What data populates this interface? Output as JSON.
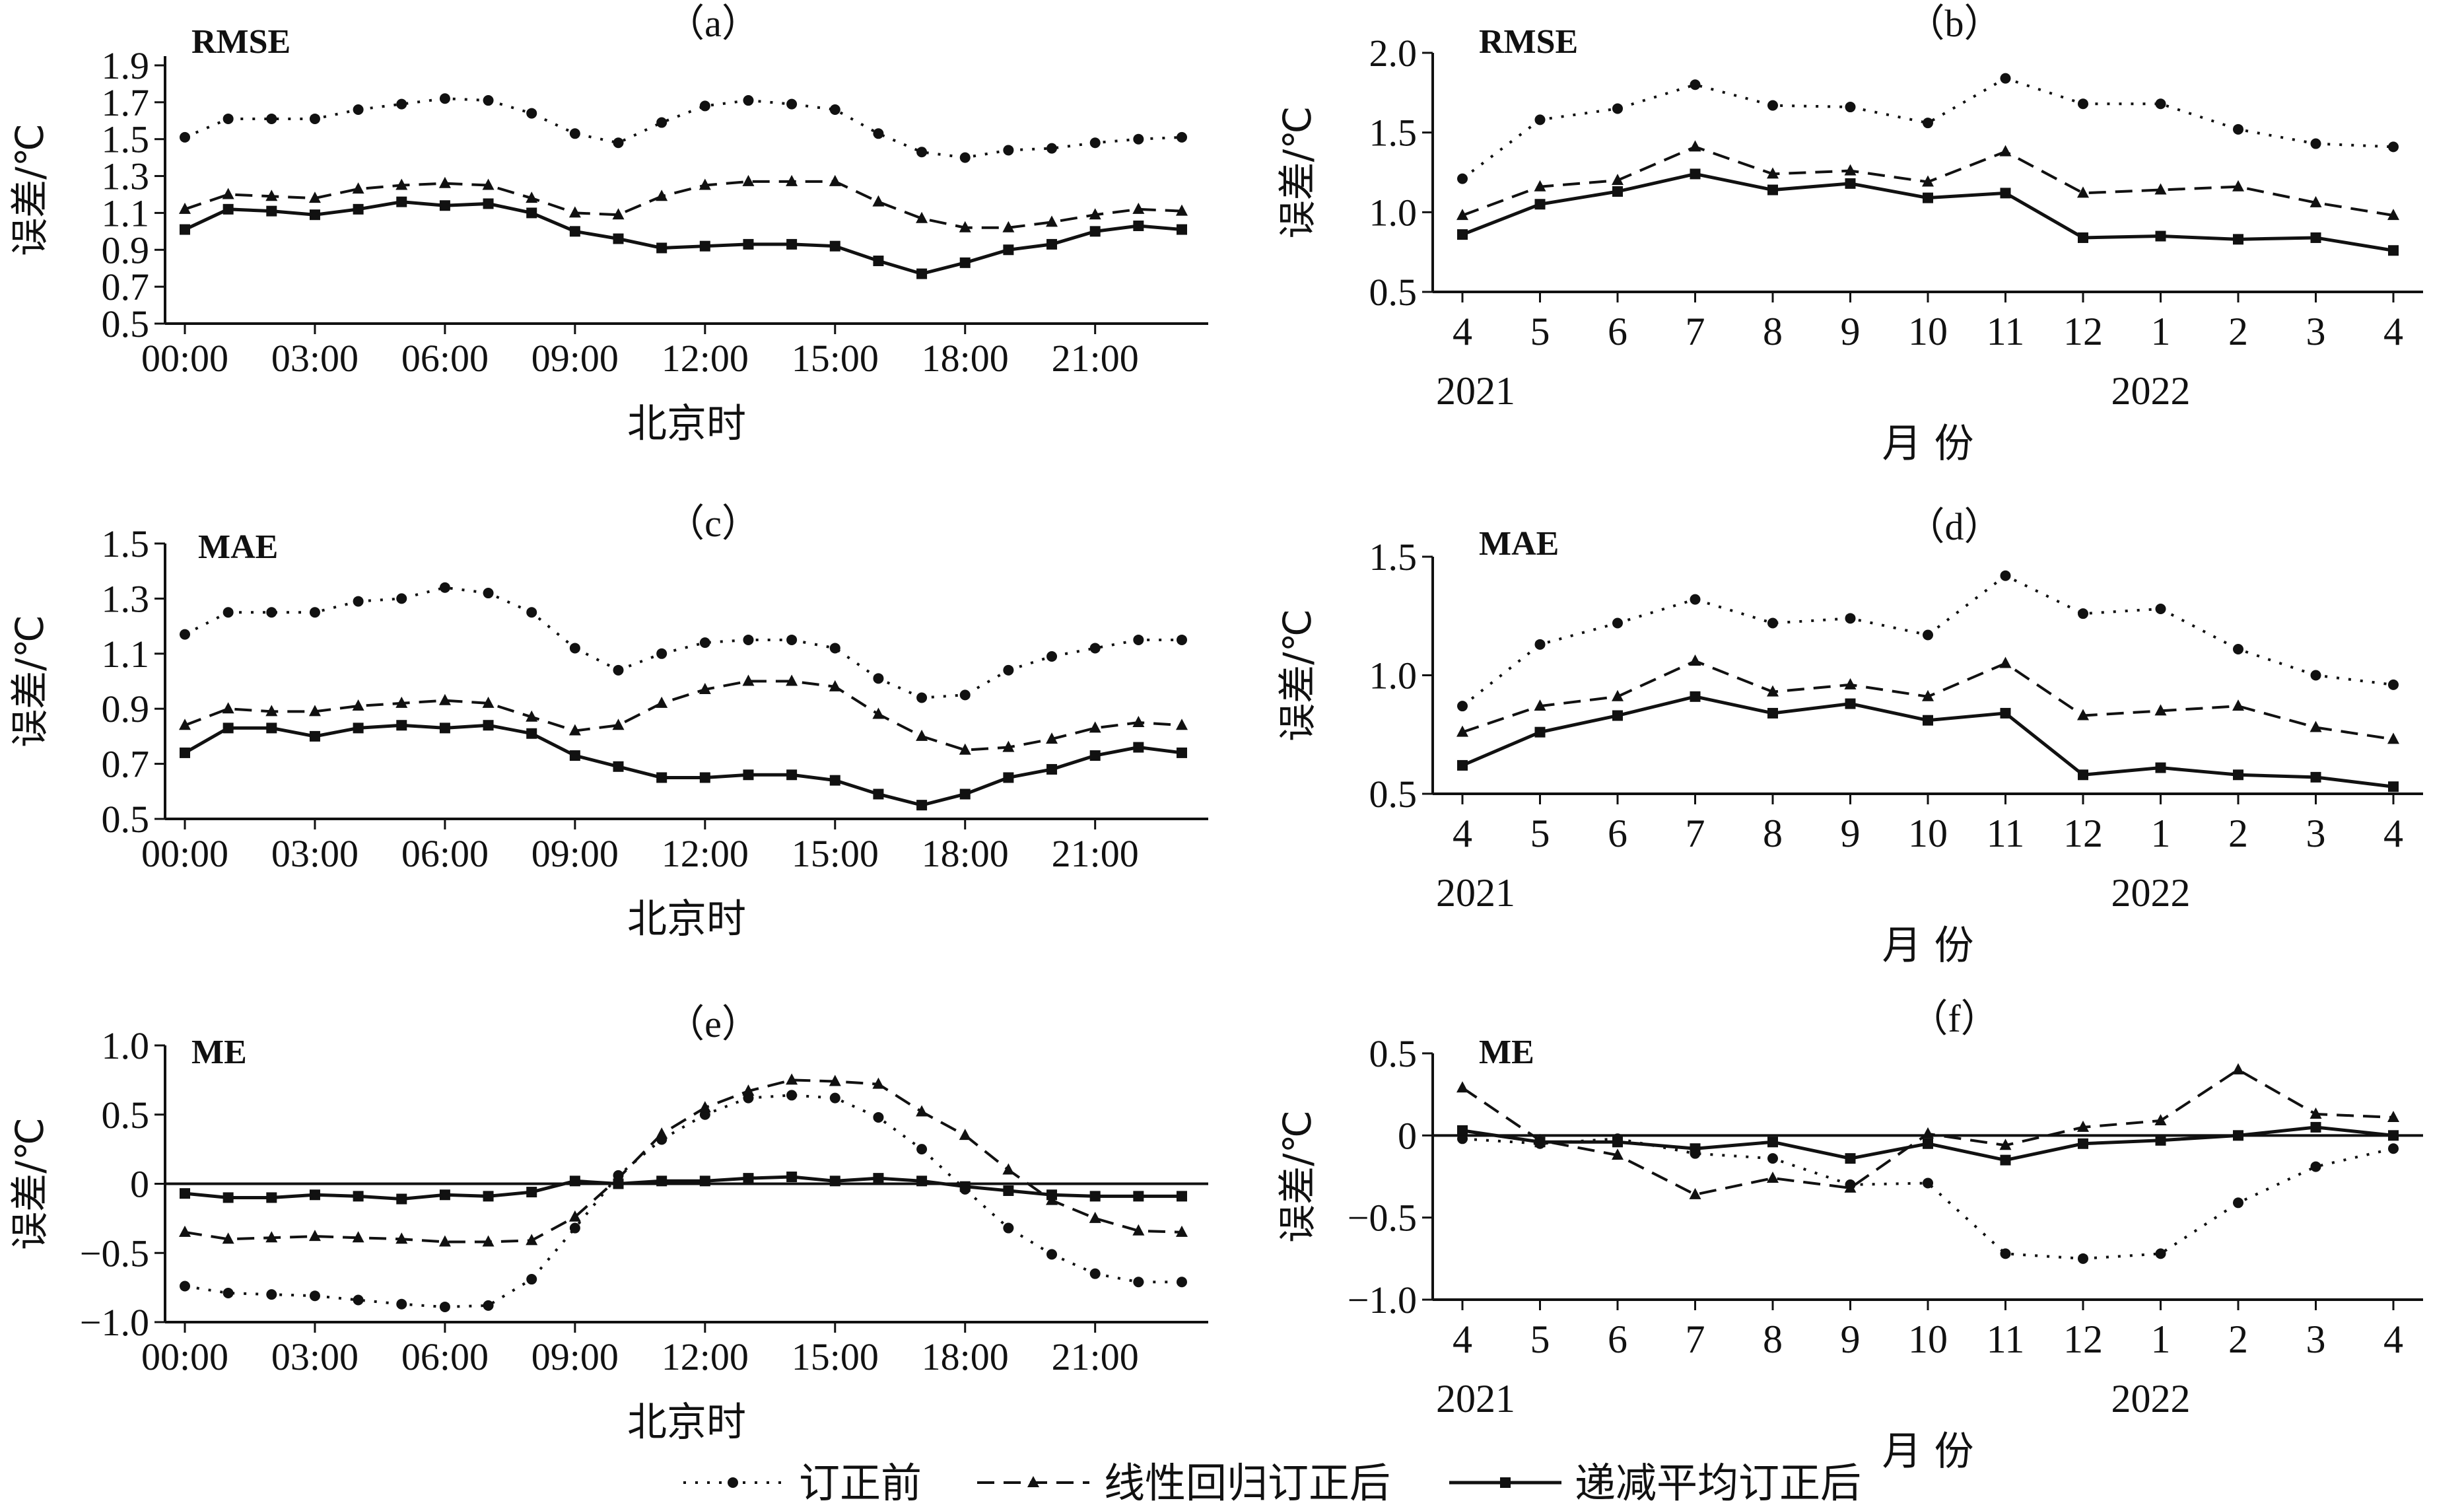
{
  "legend": {
    "before": "订正前",
    "linear": "线性回归订正后",
    "decay": "递减平均订正后"
  },
  "colors": {
    "ink": "#111111",
    "background": "#ffffff"
  },
  "chart_data": [
    {
      "id": "a",
      "panel_label": "（a）",
      "metric_label": "RMSE",
      "type": "line",
      "ylabel": "误差/℃",
      "xlabel": "北京时",
      "yticks": [
        "0.5",
        "0.7",
        "0.9",
        "1.1",
        "1.3",
        "1.5",
        "1.7",
        "1.9"
      ],
      "ylim": [
        0.5,
        1.95
      ],
      "xticks": [
        "00:00",
        "03:00",
        "06:00",
        "09:00",
        "12:00",
        "15:00",
        "18:00",
        "21:00"
      ],
      "x": [
        0,
        1,
        2,
        3,
        4,
        5,
        6,
        7,
        8,
        9,
        10,
        11,
        12,
        13,
        14,
        15,
        16,
        17,
        18,
        19,
        20,
        21,
        22,
        23
      ],
      "zero_line": false,
      "series": [
        {
          "key": "before",
          "name": "订正前",
          "values": [
            1.51,
            1.61,
            1.61,
            1.61,
            1.66,
            1.69,
            1.72,
            1.71,
            1.64,
            1.53,
            1.48,
            1.59,
            1.68,
            1.71,
            1.69,
            1.66,
            1.53,
            1.43,
            1.4,
            1.44,
            1.45,
            1.48,
            1.5,
            1.51
          ]
        },
        {
          "key": "linear",
          "name": "线性回归订正后",
          "values": [
            1.12,
            1.2,
            1.19,
            1.18,
            1.23,
            1.25,
            1.26,
            1.25,
            1.18,
            1.1,
            1.09,
            1.19,
            1.25,
            1.27,
            1.27,
            1.27,
            1.16,
            1.07,
            1.02,
            1.02,
            1.05,
            1.09,
            1.12,
            1.11
          ]
        },
        {
          "key": "decay",
          "name": "递减平均订正后",
          "values": [
            1.01,
            1.12,
            1.11,
            1.09,
            1.12,
            1.16,
            1.14,
            1.15,
            1.1,
            1.0,
            0.96,
            0.91,
            0.92,
            0.93,
            0.93,
            0.92,
            0.84,
            0.77,
            0.83,
            0.9,
            0.93,
            1.0,
            1.03,
            1.01
          ]
        }
      ]
    },
    {
      "id": "b",
      "panel_label": "（b）",
      "metric_label": "RMSE",
      "type": "line",
      "ylabel": "误差/℃",
      "xlabel": "月 份",
      "yticks": [
        "0.5",
        "1.0",
        "1.5",
        "2.0"
      ],
      "ylim": [
        0.5,
        2.0
      ],
      "categories": [
        "4",
        "5",
        "6",
        "7",
        "8",
        "9",
        "10",
        "11",
        "12",
        "1",
        "2",
        "3",
        "4"
      ],
      "year_labels": [
        "2021",
        "2022"
      ],
      "zero_line": false,
      "series": [
        {
          "key": "before",
          "name": "订正前",
          "values": [
            1.21,
            1.58,
            1.65,
            1.8,
            1.67,
            1.66,
            1.56,
            1.84,
            1.68,
            1.68,
            1.52,
            1.43,
            1.41
          ]
        },
        {
          "key": "linear",
          "name": "线性回归订正后",
          "values": [
            0.98,
            1.16,
            1.2,
            1.41,
            1.24,
            1.26,
            1.19,
            1.38,
            1.12,
            1.14,
            1.16,
            1.06,
            0.98
          ]
        },
        {
          "key": "decay",
          "name": "递减平均订正后",
          "values": [
            0.86,
            1.05,
            1.13,
            1.24,
            1.14,
            1.18,
            1.09,
            1.12,
            0.84,
            0.85,
            0.83,
            0.84,
            0.76
          ]
        }
      ]
    },
    {
      "id": "c",
      "panel_label": "（c）",
      "metric_label": "MAE",
      "type": "line",
      "ylabel": "误差/℃",
      "xlabel": "北京时",
      "yticks": [
        "0.5",
        "0.7",
        "0.9",
        "1.1",
        "1.3",
        "1.5"
      ],
      "ylim": [
        0.5,
        1.5
      ],
      "xticks": [
        "00:00",
        "03:00",
        "06:00",
        "09:00",
        "12:00",
        "15:00",
        "18:00",
        "21:00"
      ],
      "x": [
        0,
        1,
        2,
        3,
        4,
        5,
        6,
        7,
        8,
        9,
        10,
        11,
        12,
        13,
        14,
        15,
        16,
        17,
        18,
        19,
        20,
        21,
        22,
        23
      ],
      "zero_line": false,
      "series": [
        {
          "key": "before",
          "name": "订正前",
          "values": [
            1.17,
            1.25,
            1.25,
            1.25,
            1.29,
            1.3,
            1.34,
            1.32,
            1.25,
            1.12,
            1.04,
            1.1,
            1.14,
            1.15,
            1.15,
            1.12,
            1.01,
            0.94,
            0.95,
            1.04,
            1.09,
            1.12,
            1.15,
            1.15
          ]
        },
        {
          "key": "linear",
          "name": "线性回归订正后",
          "values": [
            0.84,
            0.9,
            0.89,
            0.89,
            0.91,
            0.92,
            0.93,
            0.92,
            0.87,
            0.82,
            0.84,
            0.92,
            0.97,
            1.0,
            1.0,
            0.98,
            0.88,
            0.8,
            0.75,
            0.76,
            0.79,
            0.83,
            0.85,
            0.84
          ]
        },
        {
          "key": "decay",
          "name": "递减平均订正后",
          "values": [
            0.74,
            0.83,
            0.83,
            0.8,
            0.83,
            0.84,
            0.83,
            0.84,
            0.81,
            0.73,
            0.69,
            0.65,
            0.65,
            0.66,
            0.66,
            0.64,
            0.59,
            0.55,
            0.59,
            0.65,
            0.68,
            0.73,
            0.76,
            0.74
          ]
        }
      ]
    },
    {
      "id": "d",
      "panel_label": "（d）",
      "metric_label": "MAE",
      "type": "line",
      "ylabel": "误差/℃",
      "xlabel": "月 份",
      "yticks": [
        "0.5",
        "1.0",
        "1.5"
      ],
      "ylim": [
        0.5,
        1.5
      ],
      "categories": [
        "4",
        "5",
        "6",
        "7",
        "8",
        "9",
        "10",
        "11",
        "12",
        "1",
        "2",
        "3",
        "4"
      ],
      "year_labels": [
        "2021",
        "2022"
      ],
      "zero_line": false,
      "series": [
        {
          "key": "before",
          "name": "订正前",
          "values": [
            0.87,
            1.13,
            1.22,
            1.32,
            1.22,
            1.24,
            1.17,
            1.42,
            1.26,
            1.28,
            1.11,
            1.0,
            0.96
          ]
        },
        {
          "key": "linear",
          "name": "线性回归订正后",
          "values": [
            0.76,
            0.87,
            0.91,
            1.06,
            0.93,
            0.96,
            0.91,
            1.05,
            0.83,
            0.85,
            0.87,
            0.78,
            0.73
          ]
        },
        {
          "key": "decay",
          "name": "递减平均订正后",
          "values": [
            0.62,
            0.76,
            0.83,
            0.91,
            0.84,
            0.88,
            0.81,
            0.84,
            0.58,
            0.61,
            0.58,
            0.57,
            0.53
          ]
        }
      ]
    },
    {
      "id": "e",
      "panel_label": "（e）",
      "metric_label": "ME",
      "type": "line",
      "ylabel": "误差/℃",
      "xlabel": "北京时",
      "yticks": [
        "−1.0",
        "−0.5",
        "0",
        "0.5",
        "1.0"
      ],
      "ylim": [
        -1.0,
        1.0
      ],
      "xticks": [
        "00:00",
        "03:00",
        "06:00",
        "09:00",
        "12:00",
        "15:00",
        "18:00",
        "21:00"
      ],
      "x": [
        0,
        1,
        2,
        3,
        4,
        5,
        6,
        7,
        8,
        9,
        10,
        11,
        12,
        13,
        14,
        15,
        16,
        17,
        18,
        19,
        20,
        21,
        22,
        23
      ],
      "zero_line": true,
      "series": [
        {
          "key": "before",
          "name": "订正前",
          "values": [
            -0.74,
            -0.79,
            -0.8,
            -0.81,
            -0.84,
            -0.87,
            -0.89,
            -0.88,
            -0.69,
            -0.32,
            0.06,
            0.32,
            0.5,
            0.62,
            0.64,
            0.62,
            0.48,
            0.25,
            -0.04,
            -0.32,
            -0.51,
            -0.65,
            -0.71,
            -0.71
          ]
        },
        {
          "key": "linear",
          "name": "线性回归订正后",
          "values": [
            -0.35,
            -0.4,
            -0.39,
            -0.38,
            -0.39,
            -0.4,
            -0.42,
            -0.42,
            -0.41,
            -0.24,
            0.04,
            0.36,
            0.55,
            0.67,
            0.75,
            0.74,
            0.72,
            0.52,
            0.35,
            0.1,
            -0.12,
            -0.25,
            -0.34,
            -0.35
          ]
        },
        {
          "key": "decay",
          "name": "递减平均订正后",
          "values": [
            -0.07,
            -0.1,
            -0.1,
            -0.08,
            -0.09,
            -0.11,
            -0.08,
            -0.09,
            -0.06,
            0.02,
            0.0,
            0.02,
            0.02,
            0.04,
            0.05,
            0.02,
            0.04,
            0.02,
            -0.02,
            -0.05,
            -0.08,
            -0.09,
            -0.09,
            -0.09
          ]
        }
      ]
    },
    {
      "id": "f",
      "panel_label": "（f）",
      "metric_label": "ME",
      "type": "line",
      "ylabel": "误差/℃",
      "xlabel": "月 份",
      "yticks": [
        "−1.0",
        "−0.5",
        "0",
        "0.5"
      ],
      "ylim": [
        -1.0,
        0.5
      ],
      "categories": [
        "4",
        "5",
        "6",
        "7",
        "8",
        "9",
        "10",
        "11",
        "12",
        "1",
        "2",
        "3",
        "4"
      ],
      "year_labels": [
        "2021",
        "2022"
      ],
      "zero_line": true,
      "series": [
        {
          "key": "before",
          "name": "订正前",
          "values": [
            -0.02,
            -0.05,
            -0.02,
            -0.11,
            -0.14,
            -0.3,
            -0.29,
            -0.72,
            -0.75,
            -0.72,
            -0.41,
            -0.19,
            -0.08
          ]
        },
        {
          "key": "linear",
          "name": "线性回归订正后",
          "values": [
            0.29,
            -0.03,
            -0.12,
            -0.36,
            -0.26,
            -0.32,
            0.01,
            -0.06,
            0.05,
            0.09,
            0.4,
            0.13,
            0.11
          ]
        },
        {
          "key": "decay",
          "name": "递减平均订正后",
          "values": [
            0.03,
            -0.04,
            -0.04,
            -0.08,
            -0.04,
            -0.14,
            -0.05,
            -0.15,
            -0.05,
            -0.03,
            0.0,
            0.05,
            0.0
          ]
        }
      ]
    }
  ]
}
